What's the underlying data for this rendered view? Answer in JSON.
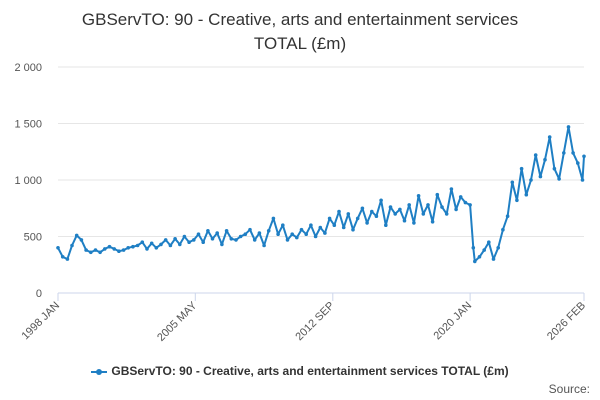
{
  "title_line1": "GBServTO: 90 - Creative, arts and entertainment services",
  "title_line2": "TOTAL (£m)",
  "credits": "Source:",
  "chart_data": {
    "type": "line",
    "title": "GBServTO: 90 - Creative, arts and entertainment services TOTAL (£m)",
    "xlabel": "",
    "ylabel": "",
    "x_ticks": [
      {
        "label": "1998 JAN",
        "year": 1998.0
      },
      {
        "label": "2005 MAY",
        "year": 2005.33
      },
      {
        "label": "2012 SEP",
        "year": 2012.67
      },
      {
        "label": "2020 JAN",
        "year": 2020.0
      },
      {
        "label": "2026 FEB",
        "year": 2026.08
      }
    ],
    "y_ticks": [
      {
        "label": "0",
        "value": 0
      },
      {
        "label": "500",
        "value": 500
      },
      {
        "label": "1 000",
        "value": 1000
      },
      {
        "label": "1 500",
        "value": 1500
      },
      {
        "label": "2 000",
        "value": 2000
      }
    ],
    "xlim": [
      1998.0,
      2026.08
    ],
    "ylim": [
      0,
      2000
    ],
    "grid": "horizontal",
    "legend_position": "bottom",
    "series": [
      {
        "name": "GBServTO: 90 - Creative, arts and entertainment services TOTAL (£m)",
        "color": "#1f7fc4",
        "points": [
          [
            1998.0,
            400
          ],
          [
            1998.25,
            320
          ],
          [
            1998.5,
            300
          ],
          [
            1998.75,
            420
          ],
          [
            1999.0,
            510
          ],
          [
            1999.25,
            470
          ],
          [
            1999.5,
            380
          ],
          [
            1999.75,
            360
          ],
          [
            2000.0,
            380
          ],
          [
            2000.25,
            360
          ],
          [
            2000.5,
            390
          ],
          [
            2000.75,
            410
          ],
          [
            2001.0,
            390
          ],
          [
            2001.25,
            370
          ],
          [
            2001.5,
            380
          ],
          [
            2001.75,
            400
          ],
          [
            2002.0,
            410
          ],
          [
            2002.25,
            420
          ],
          [
            2002.5,
            450
          ],
          [
            2002.75,
            390
          ],
          [
            2003.0,
            440
          ],
          [
            2003.25,
            400
          ],
          [
            2003.5,
            430
          ],
          [
            2003.75,
            470
          ],
          [
            2004.0,
            420
          ],
          [
            2004.25,
            480
          ],
          [
            2004.5,
            430
          ],
          [
            2004.75,
            500
          ],
          [
            2005.0,
            450
          ],
          [
            2005.25,
            470
          ],
          [
            2005.5,
            520
          ],
          [
            2005.75,
            450
          ],
          [
            2006.0,
            550
          ],
          [
            2006.25,
            480
          ],
          [
            2006.5,
            530
          ],
          [
            2006.75,
            430
          ],
          [
            2007.0,
            550
          ],
          [
            2007.25,
            480
          ],
          [
            2007.5,
            470
          ],
          [
            2007.75,
            500
          ],
          [
            2008.0,
            520
          ],
          [
            2008.25,
            560
          ],
          [
            2008.5,
            470
          ],
          [
            2008.75,
            530
          ],
          [
            2009.0,
            420
          ],
          [
            2009.25,
            550
          ],
          [
            2009.5,
            660
          ],
          [
            2009.75,
            520
          ],
          [
            2010.0,
            600
          ],
          [
            2010.25,
            470
          ],
          [
            2010.5,
            520
          ],
          [
            2010.75,
            490
          ],
          [
            2011.0,
            560
          ],
          [
            2011.25,
            520
          ],
          [
            2011.5,
            600
          ],
          [
            2011.75,
            500
          ],
          [
            2012.0,
            580
          ],
          [
            2012.25,
            530
          ],
          [
            2012.5,
            660
          ],
          [
            2012.75,
            600
          ],
          [
            2013.0,
            720
          ],
          [
            2013.25,
            580
          ],
          [
            2013.5,
            700
          ],
          [
            2013.75,
            560
          ],
          [
            2014.0,
            660
          ],
          [
            2014.25,
            750
          ],
          [
            2014.5,
            620
          ],
          [
            2014.75,
            720
          ],
          [
            2015.0,
            680
          ],
          [
            2015.25,
            820
          ],
          [
            2015.5,
            600
          ],
          [
            2015.75,
            760
          ],
          [
            2016.0,
            700
          ],
          [
            2016.25,
            740
          ],
          [
            2016.5,
            640
          ],
          [
            2016.75,
            780
          ],
          [
            2017.0,
            620
          ],
          [
            2017.25,
            860
          ],
          [
            2017.5,
            700
          ],
          [
            2017.75,
            780
          ],
          [
            2018.0,
            630
          ],
          [
            2018.25,
            870
          ],
          [
            2018.5,
            760
          ],
          [
            2018.75,
            700
          ],
          [
            2019.0,
            920
          ],
          [
            2019.25,
            740
          ],
          [
            2019.5,
            850
          ],
          [
            2019.75,
            800
          ],
          [
            2020.0,
            780
          ],
          [
            2020.17,
            400
          ],
          [
            2020.25,
            280
          ],
          [
            2020.5,
            320
          ],
          [
            2020.75,
            380
          ],
          [
            2021.0,
            450
          ],
          [
            2021.25,
            300
          ],
          [
            2021.5,
            400
          ],
          [
            2021.75,
            560
          ],
          [
            2022.0,
            680
          ],
          [
            2022.25,
            980
          ],
          [
            2022.5,
            820
          ],
          [
            2022.75,
            1100
          ],
          [
            2023.0,
            870
          ],
          [
            2023.25,
            1000
          ],
          [
            2023.5,
            1220
          ],
          [
            2023.75,
            1030
          ],
          [
            2024.0,
            1180
          ],
          [
            2024.25,
            1380
          ],
          [
            2024.5,
            1100
          ],
          [
            2024.75,
            1010
          ],
          [
            2025.0,
            1240
          ],
          [
            2025.25,
            1470
          ],
          [
            2025.5,
            1240
          ],
          [
            2025.75,
            1150
          ],
          [
            2026.0,
            1000
          ],
          [
            2026.08,
            1210
          ]
        ]
      }
    ]
  }
}
